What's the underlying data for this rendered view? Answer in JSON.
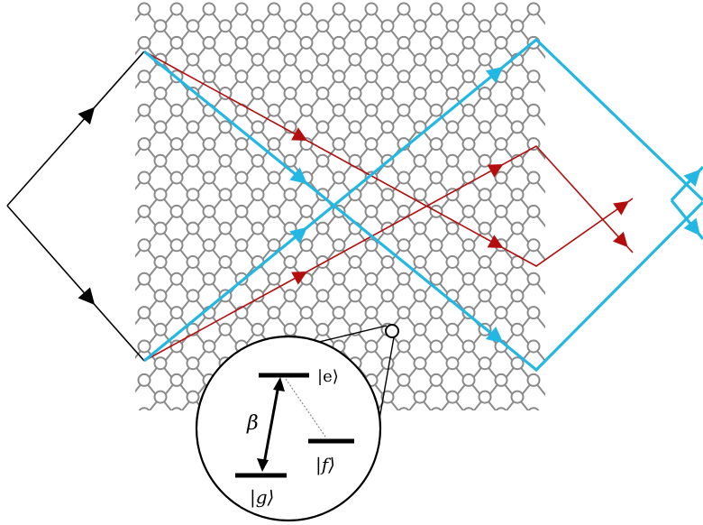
{
  "colors": {
    "background": "#ffffff",
    "lattice": "#8a8a8a",
    "beam_input": "#000000",
    "beam_red": "#b30d0d",
    "beam_blue": "#23b7e3",
    "inset": "#000000",
    "transition_dashed": "#888888"
  },
  "inset": {
    "level_e": "|e⟩",
    "level_f": "|f⟩",
    "level_g": "|g⟩",
    "coupling": "β"
  }
}
